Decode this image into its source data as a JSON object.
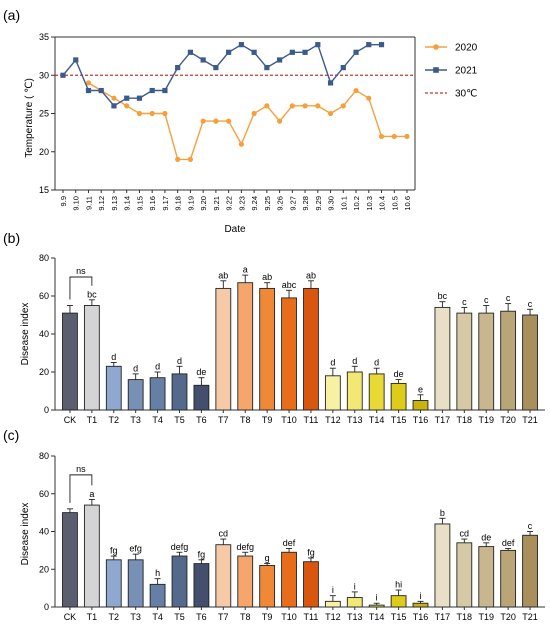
{
  "chart_data": [
    {
      "panel_label": "(a)",
      "type": "line",
      "xlabel": "Date",
      "ylabel": "Temperature ( ℃)",
      "ylim": [
        15,
        35
      ],
      "yticks": [
        15,
        20,
        25,
        30,
        35
      ],
      "grid": false,
      "legend": "right",
      "x": [
        "9.9",
        "9.10",
        "9.11",
        "9.12",
        "9.13",
        "9.14",
        "9.15",
        "9.16",
        "9.17",
        "9.18",
        "9.19",
        "9.20",
        "9.21",
        "9.22",
        "9.23",
        "9.24",
        "9.25",
        "9.26",
        "9.27",
        "9.28",
        "9.29",
        "9.30",
        "10.1",
        "10.2",
        "10.3",
        "10.4",
        "10.5",
        "10.6"
      ],
      "series": [
        {
          "name": "2020",
          "color": "#f5a03c",
          "marker": "circle",
          "values": [
            null,
            null,
            29,
            28,
            27,
            26,
            25,
            25,
            25,
            19,
            19,
            24,
            24,
            24,
            21,
            25,
            26,
            24,
            26,
            26,
            26,
            25,
            26,
            28,
            27,
            22,
            22,
            22
          ]
        },
        {
          "name": "2021",
          "color": "#3d5a8c",
          "marker": "square",
          "values": [
            30,
            32,
            28,
            28,
            26,
            27,
            27,
            28,
            28,
            31,
            33,
            32,
            31,
            33,
            34,
            33,
            31,
            32,
            33,
            33,
            34,
            29,
            31,
            33,
            34,
            34,
            null,
            null
          ]
        }
      ],
      "reference_line": {
        "name": "30℃",
        "value": 30,
        "color": "#c0392b"
      }
    },
    {
      "panel_label": "(b)",
      "type": "bar",
      "ylabel": "Disease index",
      "ylim": [
        0,
        80
      ],
      "yticks": [
        0,
        20,
        40,
        60,
        80
      ],
      "categories": [
        "CK",
        "T1",
        "T2",
        "T3",
        "T4",
        "T5",
        "T6",
        "T7",
        "T8",
        "T9",
        "T10",
        "T11",
        "T12",
        "T13",
        "T14",
        "T15",
        "T16",
        "T17",
        "T18",
        "T19",
        "T20",
        "T21"
      ],
      "values": [
        51,
        55,
        23,
        16,
        17,
        19,
        13,
        64,
        67,
        64,
        59,
        64,
        18,
        20,
        19,
        14,
        5,
        54,
        51,
        51,
        52,
        50
      ],
      "errors": [
        4,
        3,
        2,
        3,
        3,
        4,
        4,
        4,
        4,
        3,
        4,
        4,
        4,
        3,
        3,
        2,
        3,
        3,
        3,
        4,
        4,
        3
      ],
      "labels": [
        "",
        "bc",
        "d",
        "d",
        "d",
        "d",
        "de",
        "ab",
        "a",
        "ab",
        "abc",
        "ab",
        "d",
        "d",
        "d",
        "de",
        "e",
        "bc",
        "c",
        "c",
        "c",
        "c"
      ],
      "bracket": {
        "label": "ns",
        "between": [
          "CK",
          "T1"
        ]
      },
      "colors": [
        "#5b5e6e",
        "#d4d4d6",
        "#8fa8cf",
        "#7890b6",
        "#667fa4",
        "#546a8c",
        "#434f6c",
        "#f6c9a7",
        "#f4a66c",
        "#f08937",
        "#e86d1a",
        "#d9560e",
        "#f7f1a3",
        "#f1e973",
        "#e8d936",
        "#dfcb1a",
        "#c9b30c",
        "#e8dfc6",
        "#d6c9a6",
        "#c8b78e",
        "#baa576",
        "#a88f5b"
      ]
    },
    {
      "panel_label": "(c)",
      "type": "bar",
      "ylabel": "Disease index",
      "ylim": [
        0,
        80
      ],
      "yticks": [
        0,
        20,
        40,
        60,
        80
      ],
      "categories": [
        "CK",
        "T1",
        "T2",
        "T3",
        "T4",
        "T5",
        "T6",
        "T7",
        "T8",
        "T9",
        "T10",
        "T11",
        "T12",
        "T13",
        "T14",
        "T15",
        "T16",
        "T17",
        "T18",
        "T19",
        "T20",
        "T21"
      ],
      "values": [
        50,
        54,
        25,
        25,
        12,
        27,
        23,
        33,
        27,
        22,
        29,
        24,
        3,
        5,
        1,
        6,
        2,
        44,
        34,
        32,
        30,
        38
      ],
      "errors": [
        2,
        3,
        2,
        3,
        3,
        2,
        2,
        3,
        2,
        1,
        2,
        2,
        3,
        3,
        1,
        3,
        1,
        3,
        2,
        2,
        1,
        2
      ],
      "labels": [
        "",
        "a",
        "fg",
        "efg",
        "h",
        "defg",
        "fg",
        "cd",
        "defg",
        "g",
        "def",
        "fg",
        "i",
        "i",
        "i",
        "hi",
        "i",
        "b",
        "cd",
        "de",
        "def",
        "c"
      ],
      "bracket": {
        "label": "ns",
        "between": [
          "CK",
          "T1"
        ]
      },
      "colors": [
        "#5b5e6e",
        "#d4d4d6",
        "#8fa8cf",
        "#7890b6",
        "#667fa4",
        "#546a8c",
        "#434f6c",
        "#f6c9a7",
        "#f4a66c",
        "#f08937",
        "#e86d1a",
        "#d9560e",
        "#f7f1a3",
        "#f1e973",
        "#e8d936",
        "#dfcb1a",
        "#c9b30c",
        "#e8dfc6",
        "#d6c9a6",
        "#c8b78e",
        "#baa576",
        "#a88f5b"
      ]
    }
  ]
}
